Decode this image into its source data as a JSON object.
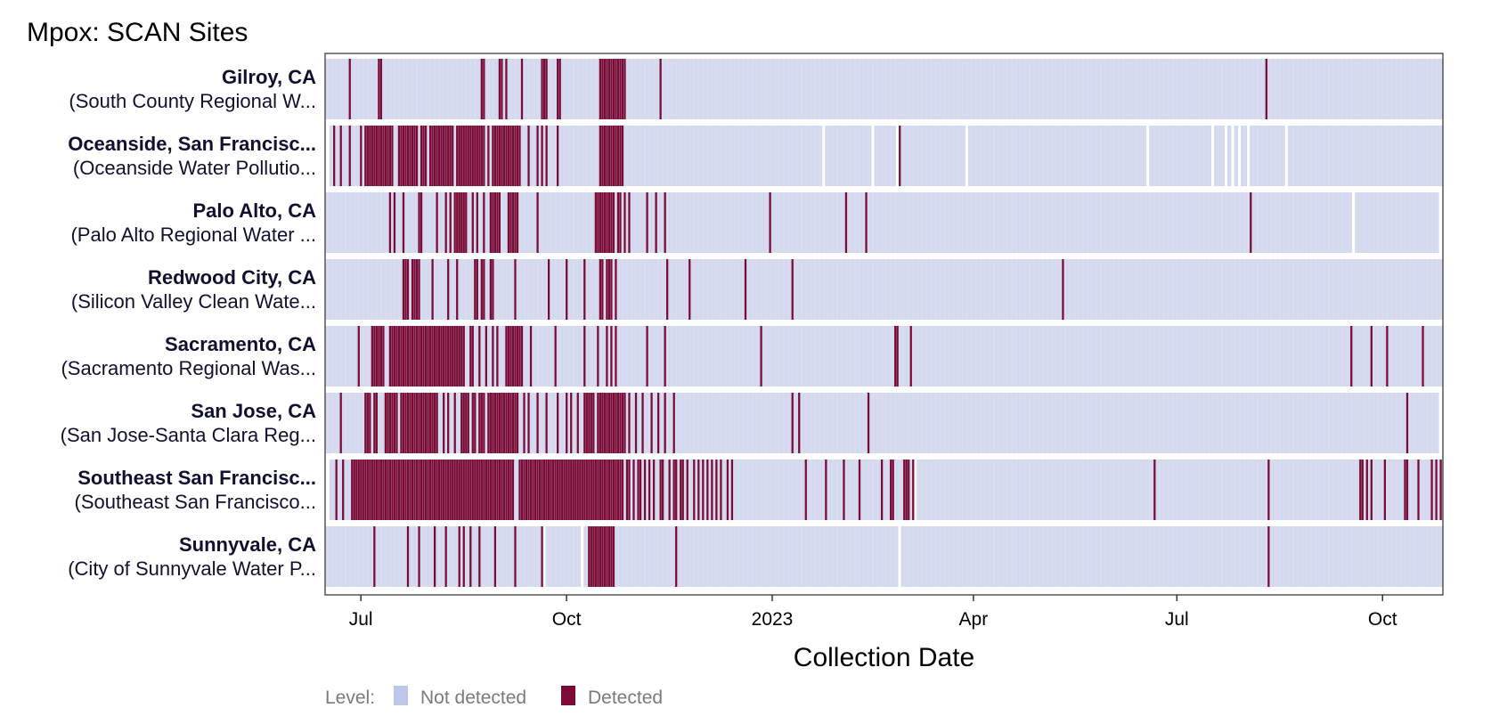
{
  "title": "Mpox: SCAN Sites",
  "colors": {
    "not_detected": "#d6dbef",
    "not_detected_legend": "#bcc6e8",
    "detected": "#7a0b35",
    "frame": "#555555"
  },
  "chart_data": {
    "type": "heatmap",
    "title": "Mpox: SCAN Sites",
    "xlabel": "Collection Date",
    "ylabel": "",
    "x_range": [
      "2022-06-15",
      "2023-10-28"
    ],
    "x_ticks": [
      {
        "date": "2022-07-01",
        "label": "Jul"
      },
      {
        "date": "2022-10-01",
        "label": "Oct"
      },
      {
        "date": "2023-01-01",
        "label": "2023"
      },
      {
        "date": "2023-04-01",
        "label": "Apr"
      },
      {
        "date": "2023-07-01",
        "label": "Jul"
      },
      {
        "date": "2023-10-01",
        "label": "Oct"
      }
    ],
    "legend": {
      "title": "Level:",
      "placement": "bottom-left",
      "items": [
        {
          "label": "Not detected",
          "key": "not_detected"
        },
        {
          "label": "Detected",
          "key": "detected"
        }
      ]
    },
    "rows": [
      {
        "name": "Gilroy, CA",
        "sub": "(South County Regional W...",
        "coverage": [
          "2022-06-15",
          "2023-10-28"
        ],
        "gaps": [],
        "detected": [
          "2022-06-26",
          "2022-07-09",
          "2022-07-10",
          "2022-08-24",
          "2022-08-25",
          "2022-09-01",
          "2022-09-02",
          "2022-09-04",
          "2022-09-11",
          "2022-09-20",
          "2022-09-21",
          "2022-09-22",
          "2022-09-27",
          "2022-09-28",
          "2022-10-16",
          "2022-10-17",
          "2022-10-18",
          "2022-10-19",
          "2022-10-20",
          "2022-10-21",
          "2022-10-22",
          "2022-10-23",
          "2022-10-24",
          "2022-10-25",
          "2022-10-26",
          "2022-10-27",
          "2022-11-12",
          "2023-08-10"
        ]
      },
      {
        "name": "Oceanside, San Francisc...",
        "sub": "(Oceanside Water Pollutio...",
        "coverage": [
          "2022-06-17",
          "2023-10-28"
        ],
        "gaps": [
          "2023-01-24",
          "2023-02-15",
          "2023-02-26",
          "2023-03-29",
          "2023-06-18",
          "2023-07-17",
          "2023-07-23",
          "2023-07-26",
          "2023-07-29",
          "2023-08-02",
          "2023-08-19"
        ],
        "detected": [
          "2022-06-19",
          "2022-06-22",
          "2022-06-26",
          "2022-07-01",
          "2022-07-03",
          "2022-07-04",
          "2022-07-05",
          "2022-07-06",
          "2022-07-07",
          "2022-07-08",
          "2022-07-09",
          "2022-07-10",
          "2022-07-11",
          "2022-07-12",
          "2022-07-13",
          "2022-07-14",
          "2022-07-15",
          "2022-07-18",
          "2022-07-19",
          "2022-07-20",
          "2022-07-21",
          "2022-07-22",
          "2022-07-23",
          "2022-07-24",
          "2022-07-25",
          "2022-07-26",
          "2022-07-28",
          "2022-07-29",
          "2022-07-30",
          "2022-08-01",
          "2022-08-02",
          "2022-08-03",
          "2022-08-04",
          "2022-08-05",
          "2022-08-06",
          "2022-08-07",
          "2022-08-08",
          "2022-08-09",
          "2022-08-10",
          "2022-08-11",
          "2022-08-13",
          "2022-08-14",
          "2022-08-15",
          "2022-08-16",
          "2022-08-17",
          "2022-08-18",
          "2022-08-19",
          "2022-08-20",
          "2022-08-21",
          "2022-08-22",
          "2022-08-23",
          "2022-08-24",
          "2022-08-25",
          "2022-08-27",
          "2022-08-29",
          "2022-08-30",
          "2022-08-31",
          "2022-09-01",
          "2022-09-02",
          "2022-09-03",
          "2022-09-04",
          "2022-09-05",
          "2022-09-06",
          "2022-09-07",
          "2022-09-08",
          "2022-09-09",
          "2022-09-10",
          "2022-09-14",
          "2022-09-18",
          "2022-09-20",
          "2022-09-22",
          "2022-09-27",
          "2022-10-16",
          "2022-10-17",
          "2022-10-18",
          "2022-10-19",
          "2022-10-20",
          "2022-10-21",
          "2022-10-22",
          "2022-10-23",
          "2022-10-24",
          "2022-10-25",
          "2022-10-26",
          "2023-02-27"
        ]
      },
      {
        "name": "Palo Alto, CA",
        "sub": "(Palo Alto Regional Water ...",
        "coverage": [
          "2022-06-15",
          "2023-10-26"
        ],
        "gaps": [
          "2023-09-18"
        ],
        "detected": [
          "2022-07-14",
          "2022-07-16",
          "2022-07-20",
          "2022-07-27",
          "2022-07-28",
          "2022-08-04",
          "2022-08-08",
          "2022-08-10",
          "2022-08-12",
          "2022-08-13",
          "2022-08-14",
          "2022-08-15",
          "2022-08-16",
          "2022-08-17",
          "2022-08-20",
          "2022-08-22",
          "2022-08-25",
          "2022-08-28",
          "2022-08-29",
          "2022-08-30",
          "2022-08-31",
          "2022-09-01",
          "2022-09-05",
          "2022-09-06",
          "2022-09-07",
          "2022-09-08",
          "2022-09-09",
          "2022-09-18",
          "2022-10-14",
          "2022-10-15",
          "2022-10-16",
          "2022-10-17",
          "2022-10-18",
          "2022-10-19",
          "2022-10-20",
          "2022-10-21",
          "2022-10-22",
          "2022-10-24",
          "2022-10-25",
          "2022-10-27",
          "2022-10-29",
          "2022-11-06",
          "2022-11-10",
          "2022-11-14",
          "2022-12-31",
          "2023-02-03",
          "2023-02-12",
          "2023-08-03"
        ]
      },
      {
        "name": "Redwood City, CA",
        "sub": "(Silicon Valley Clean Wate...",
        "coverage": [
          "2022-06-15",
          "2023-10-28"
        ],
        "gaps": [],
        "detected": [
          "2022-07-20",
          "2022-07-21",
          "2022-07-22",
          "2022-07-24",
          "2022-07-25",
          "2022-07-26",
          "2022-07-27",
          "2022-08-02",
          "2022-08-09",
          "2022-08-13",
          "2022-08-21",
          "2022-08-22",
          "2022-08-24",
          "2022-08-25",
          "2022-08-28",
          "2022-08-29",
          "2022-09-08",
          "2022-09-23",
          "2022-10-01",
          "2022-10-09",
          "2022-10-16",
          "2022-10-17",
          "2022-10-19",
          "2022-10-20",
          "2022-10-21",
          "2022-10-23",
          "2022-11-15",
          "2022-11-25",
          "2022-12-20",
          "2023-01-10",
          "2023-05-11"
        ]
      },
      {
        "name": "Sacramento, CA",
        "sub": "(Sacramento Regional Was...",
        "coverage": [
          "2022-06-15",
          "2023-10-28"
        ],
        "gaps": [],
        "detected": [
          "2022-06-30",
          "2022-07-06",
          "2022-07-07",
          "2022-07-08",
          "2022-07-09",
          "2022-07-10",
          "2022-07-11",
          "2022-07-14",
          "2022-07-15",
          "2022-07-16",
          "2022-07-17",
          "2022-07-18",
          "2022-07-19",
          "2022-07-20",
          "2022-07-21",
          "2022-07-22",
          "2022-07-23",
          "2022-07-24",
          "2022-07-25",
          "2022-07-26",
          "2022-07-27",
          "2022-07-28",
          "2022-07-29",
          "2022-07-30",
          "2022-07-31",
          "2022-08-01",
          "2022-08-02",
          "2022-08-03",
          "2022-08-04",
          "2022-08-05",
          "2022-08-06",
          "2022-08-07",
          "2022-08-08",
          "2022-08-09",
          "2022-08-10",
          "2022-08-11",
          "2022-08-12",
          "2022-08-13",
          "2022-08-14",
          "2022-08-15",
          "2022-08-16",
          "2022-08-19",
          "2022-08-20",
          "2022-08-23",
          "2022-08-26",
          "2022-08-29",
          "2022-08-31",
          "2022-09-04",
          "2022-09-05",
          "2022-09-06",
          "2022-09-07",
          "2022-09-08",
          "2022-09-09",
          "2022-09-10",
          "2022-09-11",
          "2022-09-15",
          "2022-09-26",
          "2022-10-09",
          "2022-10-15",
          "2022-10-19",
          "2022-10-21",
          "2022-10-23",
          "2022-11-06",
          "2022-11-14",
          "2022-12-27",
          "2023-02-25",
          "2023-02-26",
          "2023-03-04",
          "2023-09-17",
          "2023-09-26",
          "2023-10-03",
          "2023-10-19"
        ]
      },
      {
        "name": "San Jose, CA",
        "sub": "(San Jose-Santa Clara Reg...",
        "coverage": [
          "2022-06-15",
          "2023-10-26"
        ],
        "gaps": [],
        "detected": [
          "2022-06-22",
          "2022-07-03",
          "2022-07-04",
          "2022-07-05",
          "2022-07-07",
          "2022-07-08",
          "2022-07-12",
          "2022-07-13",
          "2022-07-14",
          "2022-07-15",
          "2022-07-16",
          "2022-07-17",
          "2022-07-19",
          "2022-07-20",
          "2022-07-21",
          "2022-07-22",
          "2022-07-23",
          "2022-07-24",
          "2022-07-25",
          "2022-07-26",
          "2022-07-27",
          "2022-07-28",
          "2022-07-29",
          "2022-07-30",
          "2022-07-31",
          "2022-08-01",
          "2022-08-02",
          "2022-08-03",
          "2022-08-04",
          "2022-08-07",
          "2022-08-09",
          "2022-08-12",
          "2022-08-15",
          "2022-08-16",
          "2022-08-17",
          "2022-08-18",
          "2022-08-20",
          "2022-08-21",
          "2022-08-23",
          "2022-08-24",
          "2022-08-25",
          "2022-08-27",
          "2022-08-28",
          "2022-08-29",
          "2022-08-30",
          "2022-08-31",
          "2022-09-01",
          "2022-09-02",
          "2022-09-03",
          "2022-09-04",
          "2022-09-05",
          "2022-09-06",
          "2022-09-07",
          "2022-09-08",
          "2022-09-09",
          "2022-09-12",
          "2022-09-14",
          "2022-09-18",
          "2022-09-22",
          "2022-09-27",
          "2022-10-01",
          "2022-10-03",
          "2022-10-06",
          "2022-10-09",
          "2022-10-10",
          "2022-10-11",
          "2022-10-12",
          "2022-10-13",
          "2022-10-15",
          "2022-10-16",
          "2022-10-17",
          "2022-10-18",
          "2022-10-19",
          "2022-10-20",
          "2022-10-21",
          "2022-10-22",
          "2022-10-23",
          "2022-10-24",
          "2022-10-25",
          "2022-10-26",
          "2022-10-27",
          "2022-10-29",
          "2022-11-01",
          "2022-11-04",
          "2022-11-08",
          "2022-11-11",
          "2022-11-14",
          "2022-11-18",
          "2023-01-10",
          "2023-01-13",
          "2023-02-13",
          "2023-10-12"
        ]
      },
      {
        "name": "Southeast San Francisc...",
        "sub": "(Southeast San Francisco...",
        "coverage": [
          "2022-06-17",
          "2023-10-28"
        ],
        "gaps": [
          "2023-03-06"
        ],
        "detected": [
          "2022-06-20",
          "2022-06-23",
          "2022-06-27",
          "2022-06-28",
          "2022-06-29",
          "2022-06-30",
          "2022-07-01",
          "2022-07-02",
          "2022-07-03",
          "2022-07-04",
          "2022-07-05",
          "2022-07-06",
          "2022-07-07",
          "2022-07-08",
          "2022-07-09",
          "2022-07-10",
          "2022-07-11",
          "2022-07-12",
          "2022-07-13",
          "2022-07-14",
          "2022-07-15",
          "2022-07-16",
          "2022-07-17",
          "2022-07-18",
          "2022-07-19",
          "2022-07-20",
          "2022-07-21",
          "2022-07-22",
          "2022-07-23",
          "2022-07-24",
          "2022-07-25",
          "2022-07-26",
          "2022-07-27",
          "2022-07-28",
          "2022-07-29",
          "2022-07-30",
          "2022-07-31",
          "2022-08-01",
          "2022-08-02",
          "2022-08-03",
          "2022-08-04",
          "2022-08-05",
          "2022-08-06",
          "2022-08-07",
          "2022-08-08",
          "2022-08-09",
          "2022-08-10",
          "2022-08-11",
          "2022-08-12",
          "2022-08-13",
          "2022-08-14",
          "2022-08-15",
          "2022-08-16",
          "2022-08-17",
          "2022-08-18",
          "2022-08-19",
          "2022-08-20",
          "2022-08-21",
          "2022-08-22",
          "2022-08-23",
          "2022-08-24",
          "2022-08-25",
          "2022-08-26",
          "2022-08-27",
          "2022-08-28",
          "2022-08-29",
          "2022-08-30",
          "2022-08-31",
          "2022-09-01",
          "2022-09-02",
          "2022-09-03",
          "2022-09-04",
          "2022-09-05",
          "2022-09-06",
          "2022-09-07",
          "2022-09-10",
          "2022-09-11",
          "2022-09-12",
          "2022-09-13",
          "2022-09-14",
          "2022-09-15",
          "2022-09-16",
          "2022-09-17",
          "2022-09-18",
          "2022-09-19",
          "2022-09-20",
          "2022-09-21",
          "2022-09-22",
          "2022-09-23",
          "2022-09-24",
          "2022-09-25",
          "2022-09-26",
          "2022-09-27",
          "2022-09-28",
          "2022-09-29",
          "2022-09-30",
          "2022-10-01",
          "2022-10-02",
          "2022-10-03",
          "2022-10-04",
          "2022-10-05",
          "2022-10-06",
          "2022-10-07",
          "2022-10-08",
          "2022-10-09",
          "2022-10-10",
          "2022-10-11",
          "2022-10-12",
          "2022-10-13",
          "2022-10-14",
          "2022-10-15",
          "2022-10-16",
          "2022-10-17",
          "2022-10-18",
          "2022-10-19",
          "2022-10-20",
          "2022-10-21",
          "2022-10-22",
          "2022-10-23",
          "2022-10-24",
          "2022-10-25",
          "2022-10-26",
          "2022-10-28",
          "2022-10-29",
          "2022-10-31",
          "2022-11-02",
          "2022-11-03",
          "2022-11-05",
          "2022-11-07",
          "2022-11-09",
          "2022-11-12",
          "2022-11-13",
          "2022-11-16",
          "2022-11-18",
          "2022-11-19",
          "2022-11-21",
          "2022-11-22",
          "2022-11-24",
          "2022-11-27",
          "2022-11-29",
          "2022-12-01",
          "2022-12-03",
          "2022-12-05",
          "2022-12-07",
          "2022-12-09",
          "2022-12-12",
          "2022-12-14",
          "2023-01-16",
          "2023-01-25",
          "2023-02-02",
          "2023-02-09",
          "2023-02-19",
          "2023-02-23",
          "2023-02-24",
          "2023-03-01",
          "2023-03-02",
          "2023-03-03",
          "2023-03-05",
          "2023-06-21",
          "2023-08-11",
          "2023-09-21",
          "2023-09-22",
          "2023-09-24",
          "2023-09-26",
          "2023-10-02",
          "2023-10-11",
          "2023-10-12",
          "2023-10-17",
          "2023-10-23",
          "2023-10-25",
          "2023-10-27"
        ]
      },
      {
        "name": "Sunnyvale, CA",
        "sub": "(City of Sunnyvale Water P...",
        "coverage": [
          "2022-06-15",
          "2023-10-28"
        ],
        "gaps": [
          "2022-09-21",
          "2022-10-08",
          "2023-02-27"
        ],
        "detected": [
          "2022-07-07",
          "2022-07-22",
          "2022-07-27",
          "2022-08-03",
          "2022-08-08",
          "2022-08-14",
          "2022-08-16",
          "2022-08-19",
          "2022-08-23",
          "2022-08-30",
          "2022-09-08",
          "2022-09-20",
          "2022-10-11",
          "2022-10-12",
          "2022-10-13",
          "2022-10-14",
          "2022-10-15",
          "2022-10-16",
          "2022-10-17",
          "2022-10-18",
          "2022-10-19",
          "2022-10-20",
          "2022-10-21",
          "2022-10-22",
          "2022-11-19",
          "2023-08-11"
        ]
      }
    ]
  }
}
